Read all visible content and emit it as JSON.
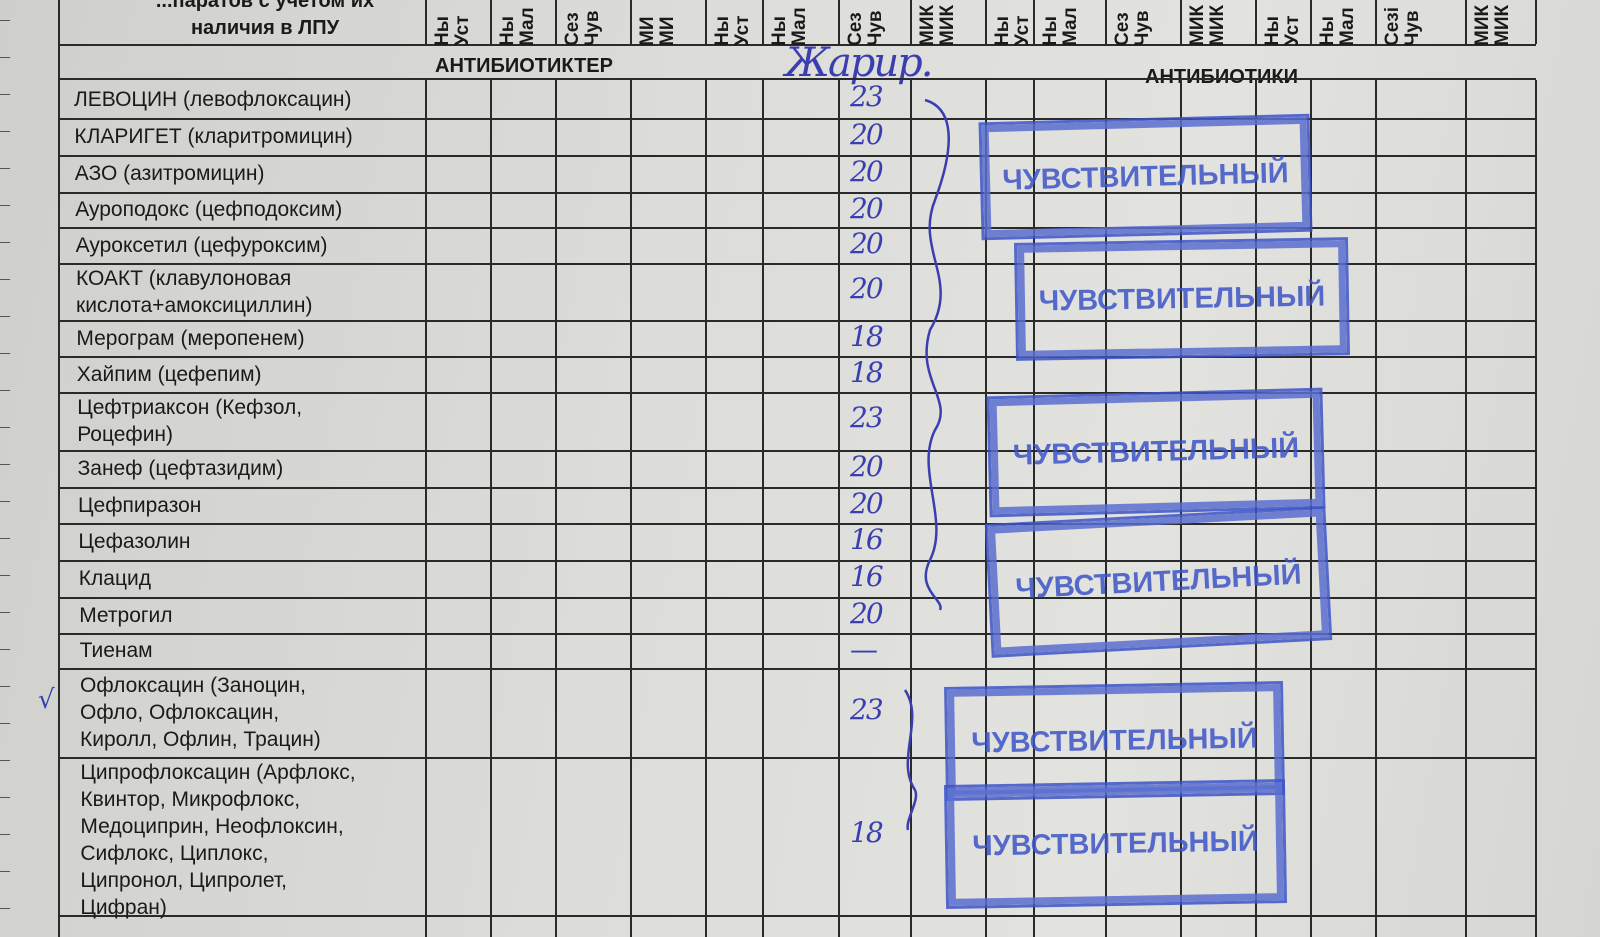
{
  "header": {
    "title": "...паратов с учетом их\nналичия в ЛПУ",
    "columns": [
      "Ны\nУст",
      "Ны\nМал",
      "Сез\nЧув",
      "МИ\nМИ",
      "Ны\nУст",
      "Ны\nМал",
      "Сез\nЧув",
      "МИК\nМИК",
      "Ны\nУст",
      "Ны\nМал",
      "Сез\nЧув",
      "МИК\nМИК",
      "Ны\nУст",
      "Ны\nМал",
      "Сезі\nЧув",
      "МИК\nМИК"
    ],
    "section_kz": "АНТИБИОТИКТЕР",
    "section_ru": "АНТИБИОТИКИ",
    "handwritten_note": "Жарир."
  },
  "rows": [
    {
      "name": "ЛЕВОЦИН (левофлоксацин)",
      "value": "23"
    },
    {
      "name": "КЛАРИГЕТ (кларитромицин)",
      "value": "20"
    },
    {
      "name": "АЗО (азитромицин)",
      "value": "20"
    },
    {
      "name": "Ауроподокс (цефподоксим)",
      "value": "20"
    },
    {
      "name": "Ауроксетил (цефуроксим)",
      "value": "20"
    },
    {
      "name": "    КОАКТ (клавулоновая\nкислота+амоксициллин)",
      "value": "20"
    },
    {
      "name": "Мерограм (меропенем)",
      "value": "18"
    },
    {
      "name": "Хайпим (цефепим)",
      "value": "18"
    },
    {
      "name": "Цефтриаксон (Кефзол,\nРоцефин)",
      "value": "23"
    },
    {
      "name": "Занеф (цефтазидим)",
      "value": "20"
    },
    {
      "name": "Цефпиразон",
      "value": "20"
    },
    {
      "name": "Цефазолин",
      "value": "16"
    },
    {
      "name": "Клацид",
      "value": "16"
    },
    {
      "name": "Метрогил",
      "value": "20"
    },
    {
      "name": "Тиенам",
      "value": "—"
    },
    {
      "name": "Офлоксацин (Заноцин,\nОфло, Офлоксацин,\nКиролл, Офлин, Трацин)",
      "value": "23"
    },
    {
      "name": "Ципрофлоксацин (Арфлокс,\nКвинтор, Микрофлокс,\nМедоциприн, Неофлоксин,\nСифлокс, Циплокс,\nЦипронол, Ципролет,\nЦифран)",
      "value": "18"
    }
  ],
  "stamps": [
    "ЧУВСТВИТЕЛЬНЫЙ",
    "ЧУВСТВИТЕЛЬНЫЙ",
    "ЧУВСТВИТЕЛЬНЫЙ",
    "ЧУВСТВИТЕЛЬНЫЙ",
    "ЧУВСТВИТЕЛЬНЫЙ",
    "ЧУВСТВИТЕЛЬНЫЙ"
  ],
  "margin_mark": "√",
  "colors": {
    "ink": "#3a3fb0",
    "stamp": "#3d55c8",
    "lines": "#2a2a2a"
  }
}
